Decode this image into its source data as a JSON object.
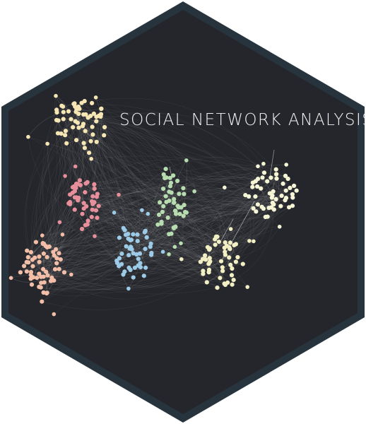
{
  "sticker": {
    "title": "SOCIAL NETWORK ANALYSIS",
    "colors": {
      "border": "#27343d",
      "background": "#24262b",
      "title": "#f2f2f2",
      "edges": "#ffffff"
    },
    "clusters": [
      {
        "name": "cream-cluster",
        "color": "#f6e6b4"
      },
      {
        "name": "pink-cluster",
        "color": "#e78f9b"
      },
      {
        "name": "peach-cluster",
        "color": "#f3bea8"
      },
      {
        "name": "blue-cluster",
        "color": "#9ccbe8"
      },
      {
        "name": "green-cluster",
        "color": "#b7dcb0"
      },
      {
        "name": "yellow-cluster",
        "color": "#f2efc4"
      },
      {
        "name": "lightyellow-cluster",
        "color": "#f6f6d7"
      }
    ]
  }
}
